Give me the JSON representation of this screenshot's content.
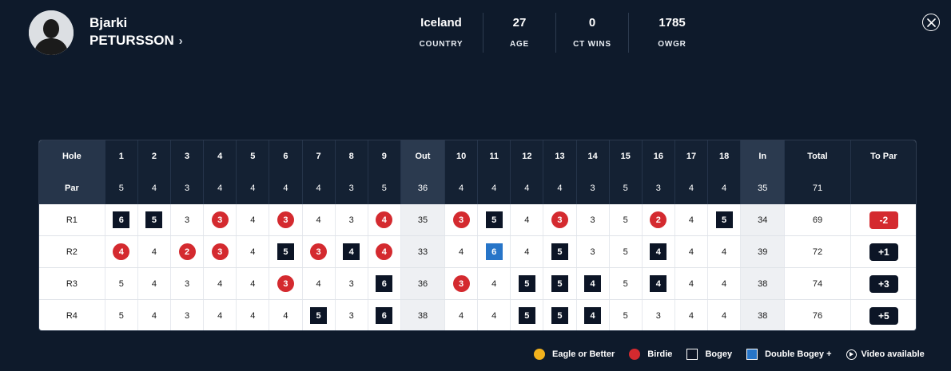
{
  "player": {
    "first_name": "Bjarki",
    "last_name": "PETURSSON",
    "chevron": "›",
    "avatar_icon": "player-silhouette"
  },
  "stats": [
    {
      "value": "Iceland",
      "label": "COUNTRY"
    },
    {
      "value": "27",
      "label": "AGE"
    },
    {
      "value": "0",
      "label": "CT WINS"
    },
    {
      "value": "1785",
      "label": "OWGR"
    }
  ],
  "close_icon": "close-circle-icon",
  "scorecard": {
    "hole_label": "Hole",
    "par_label": "Par",
    "total_label": "Total",
    "to_par_label": "To Par",
    "holes": [
      "1",
      "2",
      "3",
      "4",
      "5",
      "6",
      "7",
      "8",
      "9",
      "Out",
      "10",
      "11",
      "12",
      "13",
      "14",
      "15",
      "16",
      "17",
      "18",
      "In"
    ],
    "pars": [
      "5",
      "4",
      "3",
      "4",
      "4",
      "4",
      "4",
      "3",
      "5",
      "36",
      "4",
      "4",
      "4",
      "4",
      "3",
      "5",
      "3",
      "4",
      "4",
      "35"
    ],
    "par_total": "71",
    "rounds": [
      {
        "label": "R1",
        "scores": [
          "6",
          "5",
          "3",
          "3",
          "4",
          "3",
          "4",
          "3",
          "4",
          "35",
          "3",
          "5",
          "4",
          "3",
          "3",
          "5",
          "2",
          "4",
          "5",
          "34"
        ],
        "types": [
          "bogey",
          "bogey",
          "",
          "birdie",
          "",
          "birdie",
          "",
          "",
          "birdie",
          "",
          "birdie",
          "bogey",
          "",
          "birdie",
          "",
          "",
          "birdie",
          "",
          "bogey",
          ""
        ],
        "total": "69",
        "to_par": "-2",
        "to_par_class": "under"
      },
      {
        "label": "R2",
        "scores": [
          "4",
          "4",
          "2",
          "3",
          "4",
          "5",
          "3",
          "4",
          "4",
          "33",
          "4",
          "6",
          "4",
          "5",
          "3",
          "5",
          "4",
          "4",
          "4",
          "39"
        ],
        "types": [
          "birdie",
          "",
          "birdie",
          "birdie",
          "",
          "bogey",
          "birdie",
          "bogey",
          "birdie",
          "",
          "",
          "dbogey",
          "",
          "bogey",
          "",
          "",
          "bogey",
          "",
          "",
          ""
        ],
        "total": "72",
        "to_par": "+1",
        "to_par_class": "over"
      },
      {
        "label": "R3",
        "scores": [
          "5",
          "4",
          "3",
          "4",
          "4",
          "3",
          "4",
          "3",
          "6",
          "36",
          "3",
          "4",
          "5",
          "5",
          "4",
          "5",
          "4",
          "4",
          "4",
          "38"
        ],
        "types": [
          "",
          "",
          "",
          "",
          "",
          "birdie",
          "",
          "",
          "bogey",
          "",
          "birdie",
          "",
          "bogey",
          "bogey",
          "bogey",
          "",
          "bogey",
          "",
          "",
          ""
        ],
        "total": "74",
        "to_par": "+3",
        "to_par_class": "over"
      },
      {
        "label": "R4",
        "scores": [
          "5",
          "4",
          "3",
          "4",
          "4",
          "4",
          "5",
          "3",
          "6",
          "38",
          "4",
          "4",
          "5",
          "5",
          "4",
          "5",
          "3",
          "4",
          "4",
          "38"
        ],
        "types": [
          "",
          "",
          "",
          "",
          "",
          "",
          "bogey",
          "",
          "bogey",
          "",
          "",
          "",
          "bogey",
          "bogey",
          "bogey",
          "",
          "",
          "",
          "",
          ""
        ],
        "total": "76",
        "to_par": "+5",
        "to_par_class": "over"
      }
    ]
  },
  "legend": [
    {
      "key": "eagle",
      "label": "Eagle or Better",
      "color": "#f2b21d"
    },
    {
      "key": "birdie",
      "label": "Birdie",
      "color": "#d42a2f"
    },
    {
      "key": "bogey",
      "label": "Bogey",
      "color": "#0c1526"
    },
    {
      "key": "dbogey",
      "label": "Double Bogey +",
      "color": "#2775c8"
    },
    {
      "key": "video",
      "label": "Video available",
      "icon": "play-circle-icon"
    }
  ]
}
